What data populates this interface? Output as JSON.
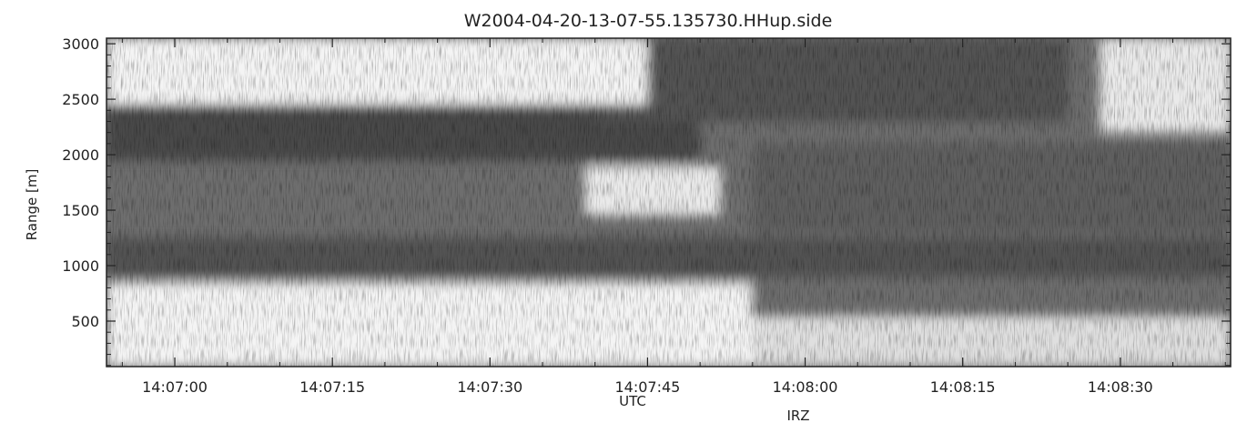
{
  "chart_data": {
    "type": "heatmap",
    "title": "W2004-04-20-13-07-55.135730.HHup.side",
    "xlabel": "UTC",
    "ylabel": "Range [m]",
    "footer_label": "IRZ",
    "x_ticks": [
      "14:07:00",
      "14:07:15",
      "14:07:30",
      "14:07:45",
      "14:08:00",
      "14:08:15",
      "14:08:30"
    ],
    "x_tick_seconds": [
      0,
      15,
      30,
      45,
      60,
      75,
      90
    ],
    "xlim_seconds": [
      -6.5,
      100.5
    ],
    "y_ticks": [
      500,
      1000,
      1500,
      2000,
      2500,
      3000
    ],
    "ylim": [
      90,
      3050
    ],
    "colormap": "grayscale",
    "dark_layers": [
      {
        "range_m": [
          1950,
          2450
        ],
        "time_s": [
          -6.5,
          50
        ],
        "intensity": 0.85
      },
      {
        "range_m": [
          900,
          1250
        ],
        "time_s": [
          -6.5,
          100.5
        ],
        "intensity": 0.8
      },
      {
        "range_m": [
          1300,
          2100
        ],
        "time_s": [
          55,
          100.5
        ],
        "intensity": 0.75
      },
      {
        "range_m": [
          2300,
          3050
        ],
        "time_s": [
          40,
          85
        ],
        "intensity": 0.8
      }
    ],
    "bright_regions": [
      {
        "range_m": [
          90,
          850
        ],
        "time_s": [
          -6.5,
          55
        ],
        "intensity": 0.05
      },
      {
        "range_m": [
          90,
          550
        ],
        "time_s": [
          55,
          100.5
        ],
        "intensity": 0.15
      },
      {
        "range_m": [
          2450,
          3050
        ],
        "time_s": [
          -6.5,
          45
        ],
        "intensity": 0.05
      },
      {
        "range_m": [
          1450,
          1900
        ],
        "time_s": [
          39,
          52
        ],
        "intensity": 0.1
      },
      {
        "range_m": [
          2200,
          3050
        ],
        "time_s": [
          88,
          100.5
        ],
        "intensity": 0.1
      }
    ],
    "grid": false,
    "legend": false
  }
}
